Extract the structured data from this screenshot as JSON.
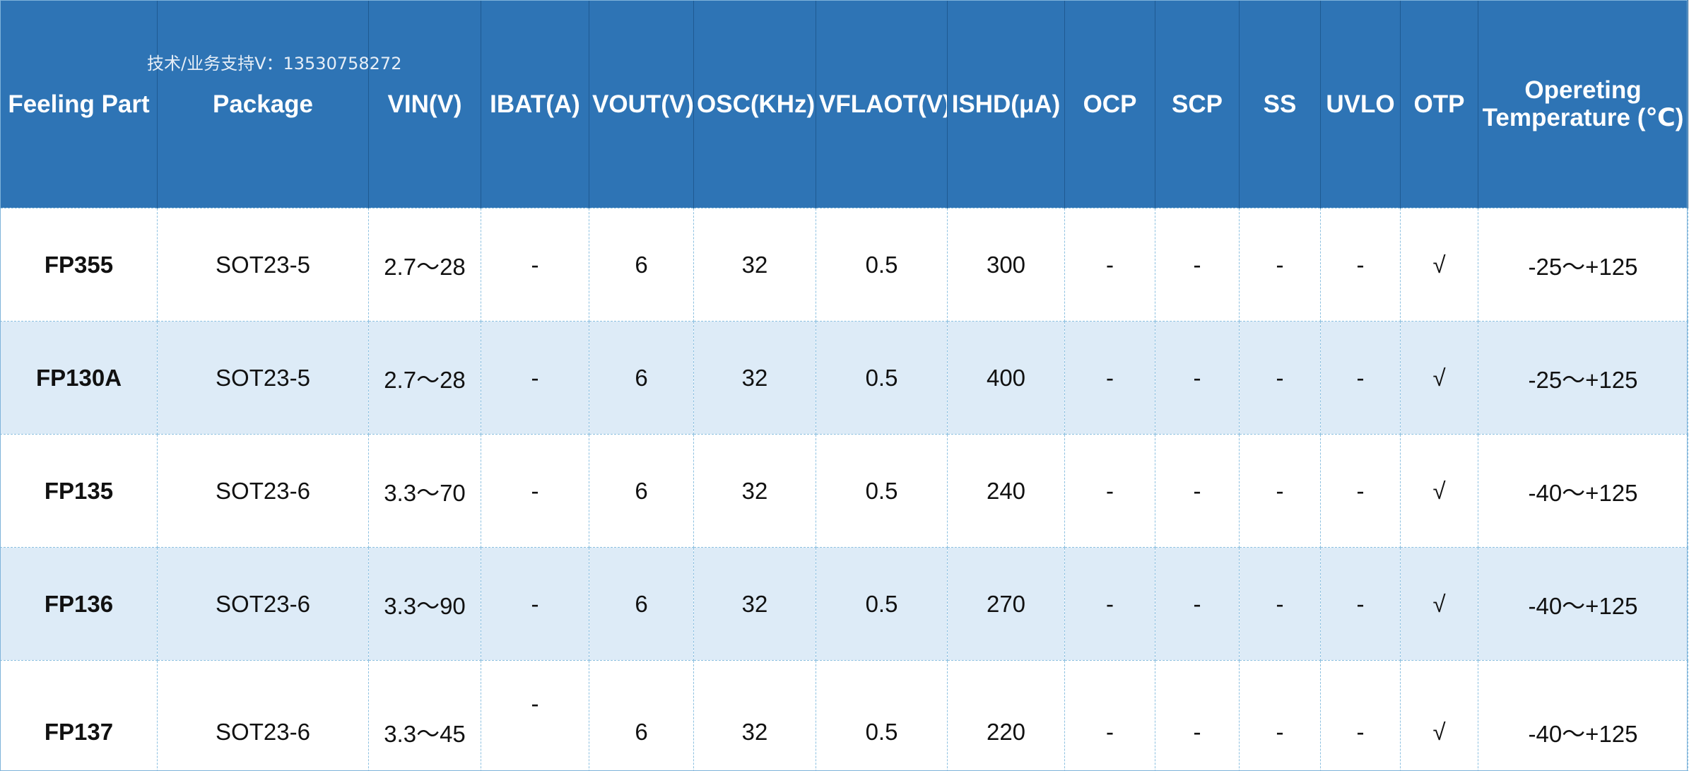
{
  "watermark": "技术/业务支持V：13530758272",
  "header": {
    "columns": [
      "Feeling Part",
      "Package",
      "VIN(V)",
      "IBAT(A)",
      "VOUT(V)",
      "OSC(KHz)",
      "VFLAOT(V)",
      "ISHD(μA)",
      "OCP",
      "SCP",
      "SS",
      "UVLO",
      "OTP",
      "Opereting Temperature (℃)"
    ]
  },
  "rows": [
    [
      "FP355",
      "SOT23-5",
      "2.7～28",
      "-",
      "6",
      "32",
      "0.5",
      "300",
      "-",
      "-",
      "-",
      "-",
      "√",
      "-25～+125"
    ],
    [
      "FP130A",
      "SOT23-5",
      "2.7～28",
      "-",
      "6",
      "32",
      "0.5",
      "400",
      "-",
      "-",
      "-",
      "-",
      "√",
      "-25～+125"
    ],
    [
      "FP135",
      "SOT23-6",
      "3.3～70",
      "-",
      "6",
      "32",
      "0.5",
      "240",
      "-",
      "-",
      "-",
      "-",
      "√",
      "-40～+125"
    ],
    [
      "FP136",
      "SOT23-6",
      "3.3～90",
      "-",
      "6",
      "32",
      "0.5",
      "270",
      "-",
      "-",
      "-",
      "-",
      "√",
      "-40～+125"
    ],
    [
      "FP137",
      "SOT23-6",
      "3.3～45",
      "-",
      "6",
      "32",
      "0.5",
      "220",
      "-",
      "-",
      "-",
      "-",
      "√",
      "-40～+125"
    ]
  ]
}
